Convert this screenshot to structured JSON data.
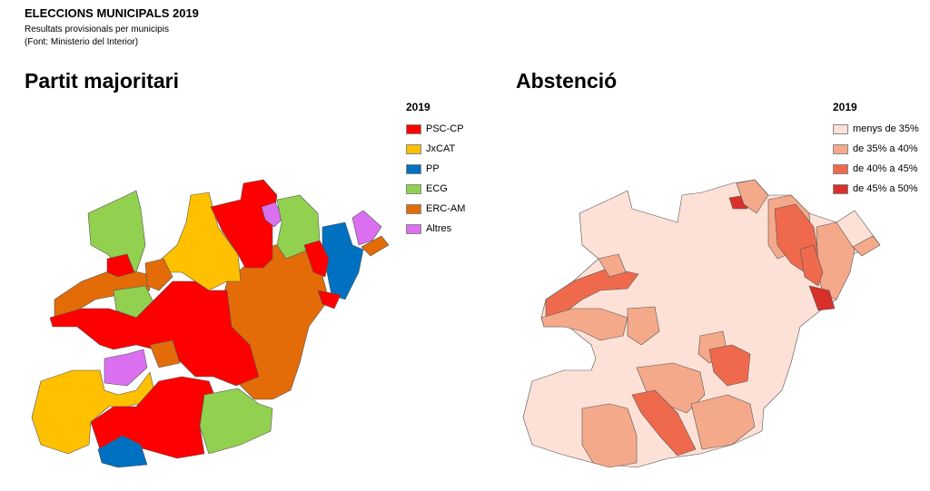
{
  "header": {
    "title": "ELECCIONS MUNICIPALS 2019",
    "subtitle": "Resultats provisionals per municipis",
    "source": "(Font: Ministerio del Interior)"
  },
  "left_map": {
    "title": "Partit majoritari",
    "legend_title": "2019",
    "legend": [
      {
        "label": "PSC-CP",
        "color": "#ff0000"
      },
      {
        "label": "JxCAT",
        "color": "#ffc000"
      },
      {
        "label": "PP",
        "color": "#0070c0"
      },
      {
        "label": "ECG",
        "color": "#92d050"
      },
      {
        "label": "ERC-AM",
        "color": "#e36c09"
      },
      {
        "label": "Altres",
        "color": "#da70f0"
      }
    ]
  },
  "right_map": {
    "title": "Abstenció",
    "legend_title": "2019",
    "legend": [
      {
        "label": "menys de 35%",
        "color": "#fde0d6"
      },
      {
        "label": "de 35% a 40%",
        "color": "#f5a98b"
      },
      {
        "label": "de 40% a 45%",
        "color": "#ef6a4d"
      },
      {
        "label": "de 45% a 50%",
        "color": "#d9302a"
      }
    ]
  }
}
